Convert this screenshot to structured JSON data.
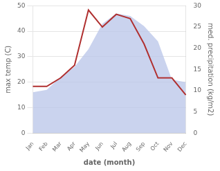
{
  "chart_data": {
    "type": "line",
    "xlabel": "date (month)",
    "ylabel": "max temp (C)",
    "y2label": "med. precipitation (kg/m2)",
    "categories": [
      "Jan",
      "Feb",
      "Mar",
      "Apr",
      "May",
      "Jun",
      "Jul",
      "Aug",
      "Sep",
      "Oct",
      "Nov",
      "Dec"
    ],
    "series": [
      {
        "type": "area",
        "color": "#b8c4e8",
        "values": [
          16,
          17,
          22,
          26,
          33,
          43,
          47,
          46,
          42,
          36,
          21,
          20
        ]
      },
      {
        "type": "line",
        "color": "#b03030",
        "axis": "y2",
        "values": [
          11,
          11,
          13,
          16,
          29,
          25,
          28,
          27,
          21,
          13,
          13,
          9
        ]
      }
    ],
    "ylim": [
      0,
      50
    ],
    "yticks": [
      0,
      10,
      20,
      30,
      40,
      50
    ],
    "y2lim": [
      0,
      30
    ],
    "y2ticks": [
      0,
      5,
      10,
      15,
      20,
      25,
      30
    ],
    "grid": true
  }
}
